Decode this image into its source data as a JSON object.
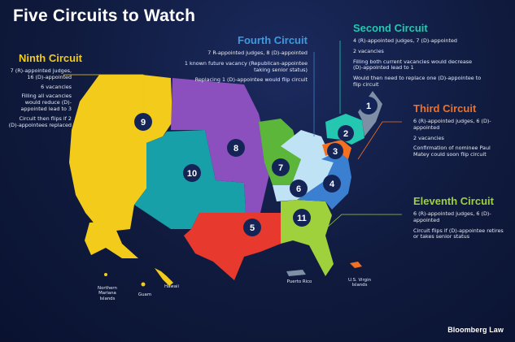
{
  "title": "Five Circuits to Watch",
  "colors": {
    "ninth": "#f2cb1b",
    "fourth": "#3b7fd0",
    "second": "#24c7b0",
    "third": "#f37021",
    "eleventh": "#9fd13c",
    "tenth": "#18a0a8",
    "eighth": "#8b4fbe",
    "fifth": "#e8392e",
    "seventh": "#5bb63a",
    "sixth": "#bfe3f5",
    "first": "#7f8fa6"
  },
  "ninth_circuit": {
    "heading": "Ninth Circuit",
    "notes": [
      "7 (R)-appointed judges, 16 (D)-appointed",
      "6 vacancies",
      "Filling all vacancies would reduce (D)-appointed lead to 3",
      "Circuit then flips if 2 (D)-appointees replaced"
    ]
  },
  "fourth_circuit": {
    "heading": "Fourth Circuit",
    "notes": [
      "7 R-appointed judges, 8 (D)-appointed",
      "1 known future vacancy (Republican-appointee taking senior status)",
      "Replacing 1 (D)-appointee would flip circuit"
    ]
  },
  "second_circuit": {
    "heading": "Second Circuit",
    "notes": [
      "4 (R)-appointed judges, 7 (D)-appointed",
      "2 vacancies",
      "Filling both current vacancies would decrease (D)-appointed lead to 1",
      "Would then need to replace one (D)-appointee to flip circuit"
    ]
  },
  "third_circuit": {
    "heading": "Third Circuit",
    "notes": [
      "6 (R)-appointed judges, 6 (D)-appointed",
      "2 vacancies",
      "Confirmation of nominee Paul Matey could soon flip circuit"
    ]
  },
  "eleventh_circuit": {
    "heading": "Eleventh Circuit",
    "notes": [
      "6 (R)-appointed judges, 6 (D)-appointed",
      "Circuit flips if (D)-appointee retires or takes senior status"
    ]
  },
  "circuit_numbers": [
    "1",
    "2",
    "3",
    "4",
    "5",
    "6",
    "7",
    "8",
    "9",
    "10",
    "11"
  ],
  "territories": {
    "northern_mariana": "Northern Mariana Islands",
    "guam": "Guam",
    "hawaii": "Hawaii",
    "puerto_rico": "Puerto Rico",
    "virgin_islands": "U.S. Virgin Islands"
  },
  "brand": "Bloomberg Law"
}
